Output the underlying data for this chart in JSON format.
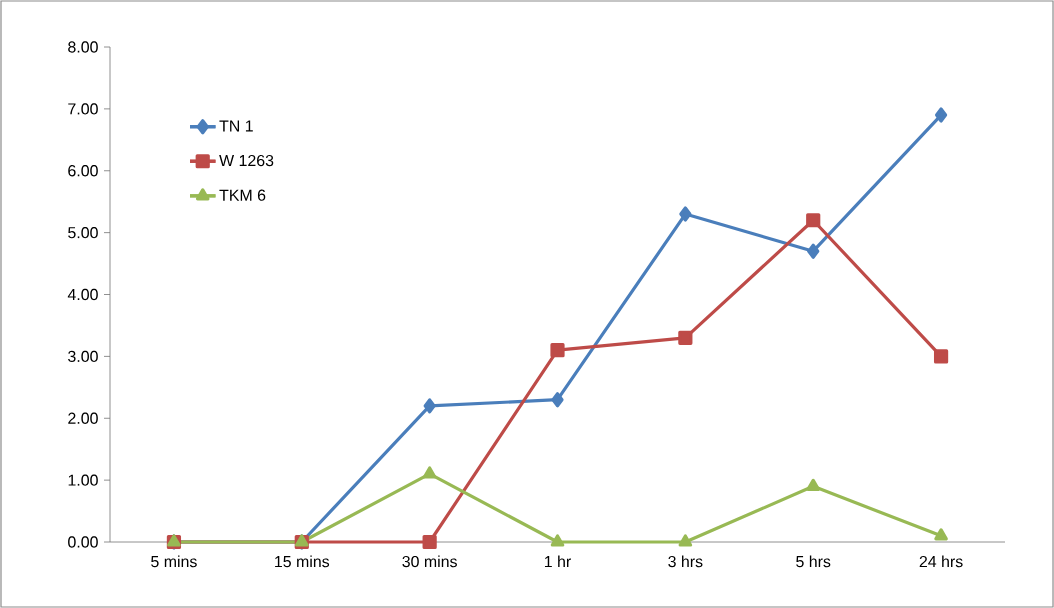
{
  "chart_data": {
    "type": "line",
    "categories": [
      "5 mins",
      "15 mins",
      "30 mins",
      "1 hr",
      "3 hrs",
      "5 hrs",
      "24 hrs"
    ],
    "series": [
      {
        "name": "TN 1",
        "color": "#4a7ebb",
        "marker": "diamond",
        "values": [
          0,
          0,
          2.2,
          2.3,
          5.3,
          4.7,
          6.9
        ]
      },
      {
        "name": "W 1263",
        "color": "#be4b48",
        "marker": "square",
        "values": [
          0,
          0,
          0,
          3.1,
          3.3,
          5.2,
          3.0
        ]
      },
      {
        "name": "TKM 6",
        "color": "#98b954",
        "marker": "triangle",
        "values": [
          0,
          0,
          1.1,
          0,
          0,
          0.9,
          0.1
        ]
      }
    ],
    "ylim": [
      0,
      8
    ],
    "yticks": [
      {
        "value": 0,
        "label": "0.00"
      },
      {
        "value": 1,
        "label": "1.00"
      },
      {
        "value": 2,
        "label": "2.00"
      },
      {
        "value": 3,
        "label": "3.00"
      },
      {
        "value": 4,
        "label": "4.00"
      },
      {
        "value": 5,
        "label": "5.00"
      },
      {
        "value": 6,
        "label": "6.00"
      },
      {
        "value": 7,
        "label": "7.00"
      },
      {
        "value": 8,
        "label": "8.00"
      }
    ],
    "grid": false,
    "legend": "top left",
    "line_style": "solid"
  }
}
